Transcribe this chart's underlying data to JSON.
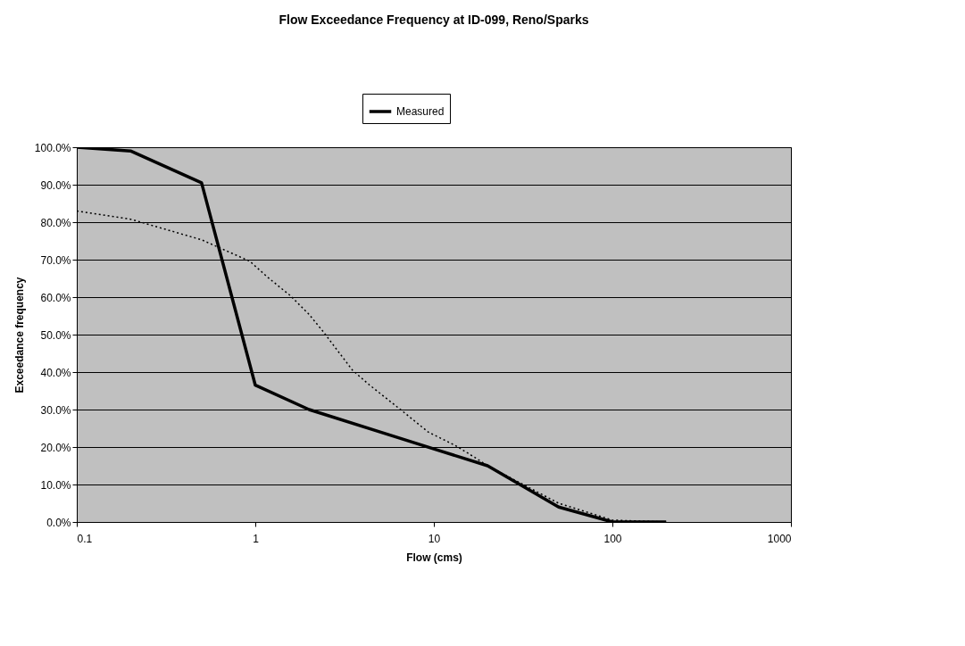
{
  "chart_data": {
    "type": "line",
    "title": "Flow Exceedance Frequency at ID-099, Reno/Sparks",
    "xlabel": "Flow (cms)",
    "ylabel": "Exceedance frequency",
    "series": [
      {
        "name": "Measured",
        "color": "#000000",
        "line_style": "solid",
        "x": [
          0.1,
          0.2,
          0.5,
          1,
          2,
          5,
          10,
          20,
          50,
          100,
          200
        ],
        "values": [
          100,
          99,
          90.5,
          36.5,
          30,
          24,
          19.5,
          15,
          4,
          0,
          0
        ]
      },
      {
        "color": "#000000",
        "line_style": "dotted",
        "x": [
          0.1,
          0.2,
          0.5,
          0.93,
          1.18,
          1.57,
          2.0,
          2.4,
          3.5,
          4.35,
          6.7,
          9.3,
          13.2,
          17,
          20,
          50,
          100,
          200
        ],
        "values": [
          83,
          80.8,
          75.3,
          69.6,
          65.2,
          60.4,
          55.4,
          50.8,
          40.5,
          36.6,
          29.5,
          24,
          20.4,
          17.2,
          15,
          5,
          0.5,
          0
        ]
      }
    ],
    "log": "x",
    "xlim": [
      0.1,
      1000
    ],
    "xticks": [
      0.1,
      1,
      10,
      100,
      1000
    ],
    "ylim": [
      0,
      100
    ],
    "yticks": [
      {
        "value": 0,
        "label": "0.0%"
      },
      {
        "value": 10,
        "label": "10.0%"
      },
      {
        "value": 20,
        "label": "20.0%"
      },
      {
        "value": 30,
        "label": "30.0%"
      },
      {
        "value": 40,
        "label": "40.0%"
      },
      {
        "value": 50,
        "label": "50.0%"
      },
      {
        "value": 60,
        "label": "60.0%"
      },
      {
        "value": 70,
        "label": "70.0%"
      },
      {
        "value": 80,
        "label": "80.0%"
      },
      {
        "value": 90,
        "label": "90.0%"
      },
      {
        "value": 100,
        "label": "100.0%"
      }
    ],
    "grid": "y",
    "legend": "top",
    "marker": "none"
  }
}
